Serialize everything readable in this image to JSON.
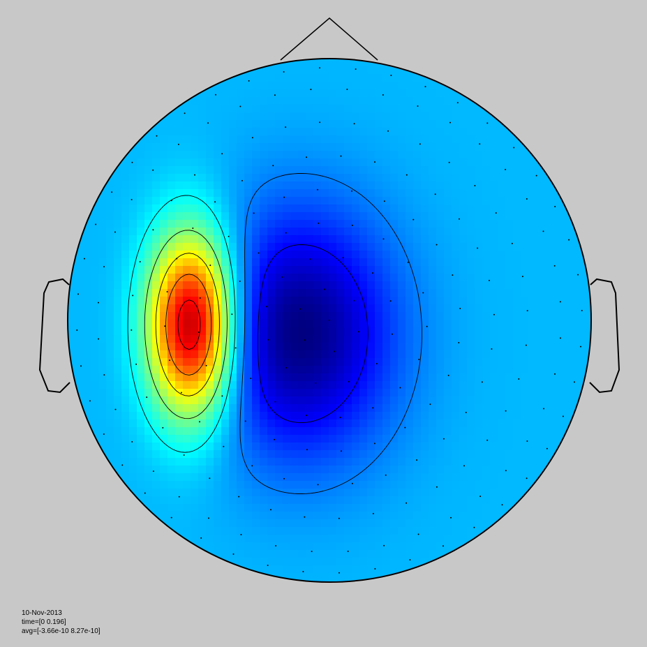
{
  "colors": {
    "background": "#c8c8c8",
    "outline": "#000000",
    "colormap": "jet"
  },
  "chart_data": {
    "type": "heatmap",
    "subtype": "topographic scalp map",
    "color_range": [
      -3.66e-10,
      8.27e-10
    ],
    "sources": [
      {
        "name": "positive-peak",
        "polarity": "positive",
        "peak_value": 8.27e-10
      },
      {
        "name": "negative-peak",
        "polarity": "negative",
        "peak_value": -3.66e-10
      }
    ],
    "contours": 8,
    "sensor_markers": true
  },
  "info": {
    "date": "10-Nov-2013",
    "time": "time=[0 0.196]",
    "avg": "avg=[-3.66e-10 8.27e-10]"
  }
}
